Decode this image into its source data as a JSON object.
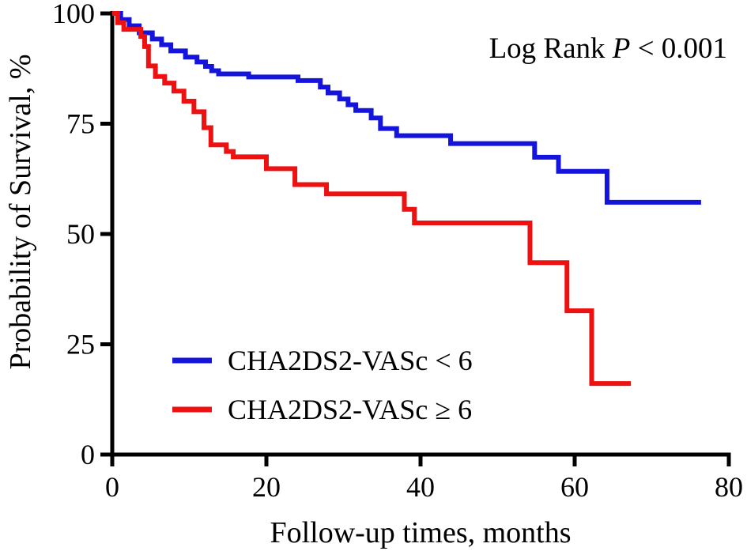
{
  "chart_data": {
    "type": "line",
    "subtype": "kaplan-meier-step",
    "title": "",
    "xlabel": "Follow-up times, months",
    "ylabel": "Probability of Survival, %",
    "xlim": [
      0,
      80
    ],
    "ylim": [
      0,
      100
    ],
    "xticks": [
      0,
      20,
      40,
      60,
      80
    ],
    "yticks": [
      0,
      25,
      50,
      75,
      100
    ],
    "grid": false,
    "legend_position": "inside-lower-left",
    "axis_color": "#000000",
    "annotation": {
      "prefix": "Log Rank ",
      "italic": "P",
      "suffix": " < 0.001"
    },
    "series": [
      {
        "name": "CHA2DS2-VASc < 6",
        "key": "cha2ds2-vasc-lt-6",
        "color": "#1414DC",
        "end_x": 76.4,
        "steps": [
          [
            0,
            100
          ],
          [
            1.1,
            98.6
          ],
          [
            2.2,
            97.2
          ],
          [
            3.5,
            95.6
          ],
          [
            5.2,
            94.2
          ],
          [
            6.4,
            92.9
          ],
          [
            7.6,
            91.5
          ],
          [
            9.5,
            90.1
          ],
          [
            11.0,
            89.0
          ],
          [
            12.1,
            88.0
          ],
          [
            12.9,
            87.0
          ],
          [
            13.8,
            86.3
          ],
          [
            17.7,
            85.6
          ],
          [
            24.1,
            84.8
          ],
          [
            27.0,
            83.3
          ],
          [
            28.0,
            82.0
          ],
          [
            29.5,
            80.6
          ],
          [
            30.6,
            79.3
          ],
          [
            31.6,
            78.0
          ],
          [
            33.6,
            76.3
          ],
          [
            34.8,
            73.9
          ],
          [
            36.9,
            72.3
          ],
          [
            43.9,
            70.5
          ],
          [
            54.8,
            67.4
          ],
          [
            57.9,
            64.2
          ],
          [
            64.2,
            57.2
          ]
        ]
      },
      {
        "name": "CHA2DS2-VASc ≥ 6",
        "key": "cha2ds2-vasc-ge-6",
        "color": "#EE1111",
        "end_x": 67.3,
        "steps": [
          [
            0,
            100
          ],
          [
            0.7,
            97.9
          ],
          [
            1.5,
            96.4
          ],
          [
            3.7,
            94.8
          ],
          [
            4.2,
            92.5
          ],
          [
            4.7,
            88.1
          ],
          [
            5.6,
            85.7
          ],
          [
            6.8,
            84.2
          ],
          [
            8.0,
            82.4
          ],
          [
            9.3,
            80.1
          ],
          [
            10.6,
            77.7
          ],
          [
            11.9,
            74.1
          ],
          [
            12.8,
            70.2
          ],
          [
            14.8,
            68.7
          ],
          [
            15.7,
            67.5
          ],
          [
            20.0,
            64.8
          ],
          [
            23.7,
            61.2
          ],
          [
            27.8,
            59.1
          ],
          [
            37.9,
            55.6
          ],
          [
            39.2,
            52.5
          ],
          [
            54.2,
            43.5
          ],
          [
            59.0,
            32.6
          ],
          [
            62.2,
            16.1
          ]
        ]
      }
    ]
  }
}
